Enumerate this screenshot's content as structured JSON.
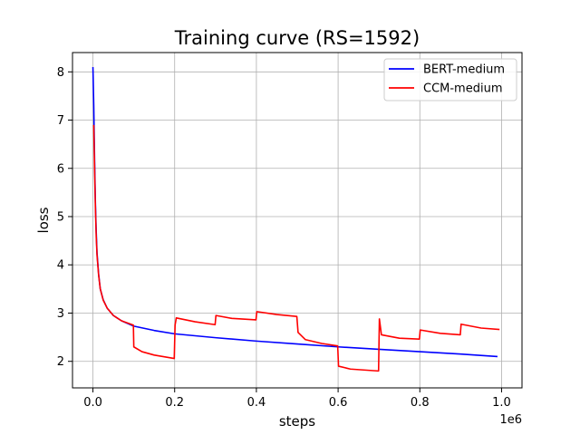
{
  "chart_data": {
    "type": "line",
    "title": "Training curve (RS=1592)",
    "xlabel": "steps",
    "ylabel": "loss",
    "x_offset_label": "1e6",
    "xlim": [
      -50000,
      1050000
    ],
    "ylim": [
      1.45,
      8.4
    ],
    "x_ticks": [
      0,
      200000,
      400000,
      600000,
      800000,
      1000000
    ],
    "x_tick_labels": [
      "0.0",
      "0.2",
      "0.4",
      "0.6",
      "0.8",
      "1.0"
    ],
    "y_ticks": [
      2,
      3,
      4,
      5,
      6,
      7,
      8
    ],
    "y_tick_labels": [
      "2",
      "3",
      "4",
      "5",
      "6",
      "7",
      "8"
    ],
    "grid": true,
    "legend_position": "upper-right",
    "series": [
      {
        "name": "BERT-medium",
        "color": "#0000ff",
        "points": [
          [
            0,
            8.1
          ],
          [
            2000,
            7.3
          ],
          [
            4000,
            6.2
          ],
          [
            6000,
            5.3
          ],
          [
            8000,
            4.7
          ],
          [
            10000,
            4.25
          ],
          [
            14000,
            3.8
          ],
          [
            18000,
            3.5
          ],
          [
            25000,
            3.28
          ],
          [
            35000,
            3.1
          ],
          [
            50000,
            2.95
          ],
          [
            70000,
            2.84
          ],
          [
            100000,
            2.73
          ],
          [
            150000,
            2.64
          ],
          [
            200000,
            2.57
          ],
          [
            300000,
            2.49
          ],
          [
            400000,
            2.42
          ],
          [
            500000,
            2.36
          ],
          [
            600000,
            2.3
          ],
          [
            700000,
            2.25
          ],
          [
            800000,
            2.2
          ],
          [
            900000,
            2.15
          ],
          [
            990000,
            2.1
          ]
        ]
      },
      {
        "name": "CCM-medium",
        "color": "#ff0000",
        "points": [
          [
            2000,
            6.9
          ],
          [
            4000,
            6.0
          ],
          [
            6000,
            5.2
          ],
          [
            8000,
            4.6
          ],
          [
            10000,
            4.2
          ],
          [
            14000,
            3.78
          ],
          [
            18000,
            3.5
          ],
          [
            25000,
            3.27
          ],
          [
            35000,
            3.1
          ],
          [
            50000,
            2.95
          ],
          [
            70000,
            2.84
          ],
          [
            99000,
            2.75
          ],
          [
            100000,
            2.3
          ],
          [
            120000,
            2.2
          ],
          [
            150000,
            2.13
          ],
          [
            199000,
            2.06
          ],
          [
            201000,
            2.75
          ],
          [
            204000,
            2.9
          ],
          [
            250000,
            2.82
          ],
          [
            299000,
            2.76
          ],
          [
            301000,
            2.95
          ],
          [
            340000,
            2.89
          ],
          [
            399000,
            2.86
          ],
          [
            401000,
            3.03
          ],
          [
            450000,
            2.97
          ],
          [
            499000,
            2.93
          ],
          [
            502000,
            2.6
          ],
          [
            520000,
            2.45
          ],
          [
            560000,
            2.37
          ],
          [
            599000,
            2.32
          ],
          [
            601000,
            1.9
          ],
          [
            630000,
            1.84
          ],
          [
            699000,
            1.8
          ],
          [
            701000,
            2.88
          ],
          [
            706000,
            2.55
          ],
          [
            750000,
            2.48
          ],
          [
            799000,
            2.46
          ],
          [
            801000,
            2.65
          ],
          [
            850000,
            2.58
          ],
          [
            899000,
            2.55
          ],
          [
            901000,
            2.77
          ],
          [
            950000,
            2.69
          ],
          [
            995000,
            2.66
          ]
        ]
      }
    ]
  }
}
